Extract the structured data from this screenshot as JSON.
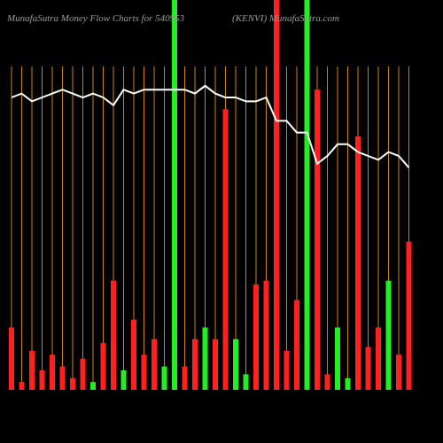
{
  "chart_data": {
    "type": "bar",
    "title": "MunafaSutra  Money Flow  Charts for 540953",
    "subtitle": "(KENVI) MunafaSutra.com",
    "ylim": [
      0,
      100
    ],
    "grid_color": "#c8860b",
    "line_color": "#ffffff",
    "series": [
      {
        "values": [
          16,
          2,
          10,
          5,
          9,
          6,
          3,
          8,
          2,
          12,
          28,
          5,
          18,
          9,
          13,
          6,
          105,
          6,
          13,
          16,
          13,
          72,
          13,
          4,
          27,
          28,
          105,
          10,
          23,
          105,
          77,
          4,
          16,
          3,
          65,
          11,
          16,
          28,
          9,
          38
        ],
        "colors": [
          "#ff2020",
          "#ff2020",
          "#ff2020",
          "#ff2020",
          "#ff2020",
          "#ff2020",
          "#ff2020",
          "#ff2020",
          "#22ee22",
          "#ff2020",
          "#ff2020",
          "#22ee22",
          "#ff2020",
          "#ff2020",
          "#ff2020",
          "#22ee22",
          "#22ee22",
          "#ff2020",
          "#ff2020",
          "#22ee22",
          "#ff2020",
          "#ff2020",
          "#22ee22",
          "#22ee22",
          "#ff2020",
          "#ff2020",
          "#ff2020",
          "#ff2020",
          "#ff2020",
          "#22ee22",
          "#ff2020",
          "#ff2020",
          "#22ee22",
          "#22ee22",
          "#ff2020",
          "#ff2020",
          "#ff2020",
          "#22ee22",
          "#ff2020",
          "#ff2020"
        ]
      },
      {
        "type": "line",
        "values": [
          75,
          76,
          74,
          75,
          76,
          77,
          76,
          75,
          76,
          75,
          73,
          77,
          76,
          77,
          77,
          77,
          77,
          77,
          76,
          78,
          76,
          75,
          75,
          74,
          74,
          75,
          69,
          69,
          66,
          66,
          58,
          60,
          63,
          63,
          61,
          60,
          59,
          61,
          60,
          57
        ]
      }
    ]
  }
}
